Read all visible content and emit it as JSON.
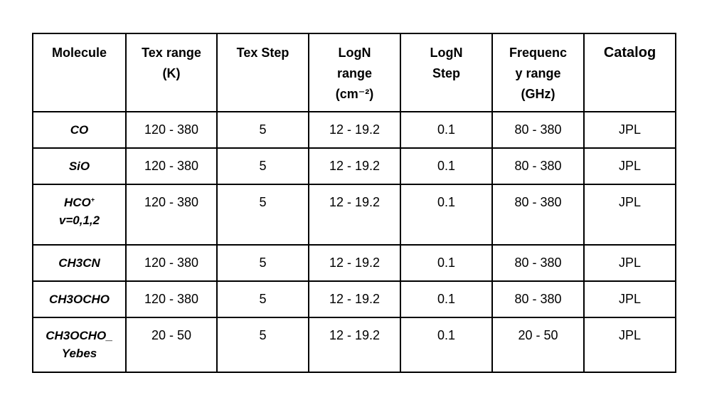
{
  "table": {
    "headers": {
      "molecule": "Molecule",
      "tex_range": "Tex range",
      "tex_range_unit": "(K)",
      "tex_step": "Tex Step",
      "logn_range": "LogN",
      "logn_range_2": "range",
      "logn_range_unit": "(cm⁻²)",
      "logn_step": "LogN",
      "logn_step_2": "Step",
      "freq_range": "Frequenc",
      "freq_range_2": "y range",
      "freq_range_unit": "(GHz)",
      "catalog": "Catalog"
    },
    "rows": [
      {
        "molecule": "CO",
        "tex_range": "120 - 380",
        "tex_step": "5",
        "logn_range": "12 - 19.2",
        "logn_step": "0.1",
        "freq_range": "80 - 380",
        "catalog": "JPL"
      },
      {
        "molecule": "SiO",
        "tex_range": "120 - 380",
        "tex_step": "5",
        "logn_range": "12 - 19.2",
        "logn_step": "0.1",
        "freq_range": "80 - 380",
        "catalog": "JPL"
      },
      {
        "molecule": "HCO",
        "molecule_sup": "+",
        "molecule_line2": "v=0,1,2",
        "tex_range": "120 - 380",
        "tex_step": "5",
        "logn_range": "12 - 19.2",
        "logn_step": "0.1",
        "freq_range": "80 - 380",
        "catalog": "JPL"
      },
      {
        "molecule": "CH3CN",
        "tex_range": "120 - 380",
        "tex_step": "5",
        "logn_range": "12 - 19.2",
        "logn_step": "0.1",
        "freq_range": "80 - 380",
        "catalog": "JPL"
      },
      {
        "molecule": "CH3OCHO",
        "tex_range": "120 - 380",
        "tex_step": "5",
        "logn_range": "12 - 19.2",
        "logn_step": "0.1",
        "freq_range": "80 - 380",
        "catalog": "JPL"
      },
      {
        "molecule": "CH3OCHO_",
        "molecule_line2": "Yebes",
        "tex_range": "20 - 50",
        "tex_step": "5",
        "logn_range": "12 - 19.2",
        "logn_step": "0.1",
        "freq_range": "20 - 50",
        "catalog": "JPL"
      }
    ]
  }
}
